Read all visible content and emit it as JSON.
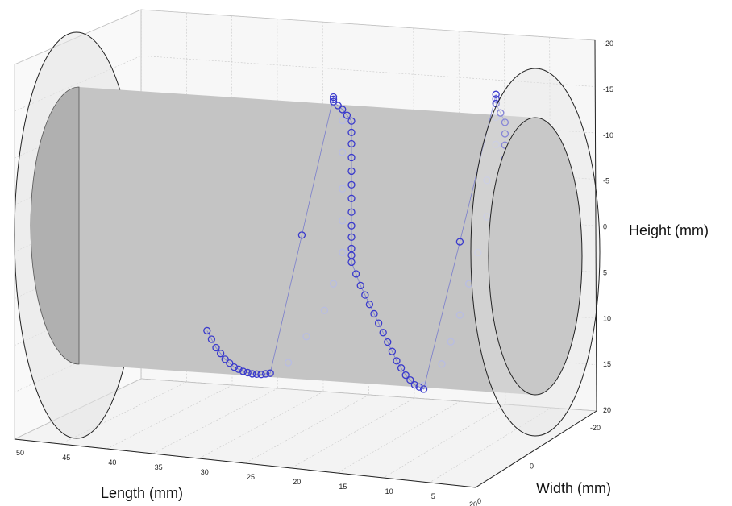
{
  "chart_data": {
    "type": "scatter",
    "title": "",
    "xlabel": "Length (mm)",
    "ylabel": "Width (mm)",
    "zlabel": "Height (mm)",
    "x_ticks": [
      "50",
      "45",
      "40",
      "35",
      "30",
      "25",
      "20",
      "15",
      "10",
      "5",
      "0"
    ],
    "y_ticks": [
      "-20",
      "0",
      "20"
    ],
    "z_ticks": [
      "-20",
      "-15",
      "-10",
      "-5",
      "0",
      "5",
      "10",
      "15",
      "20"
    ],
    "xlim": [
      0,
      50
    ],
    "ylim": [
      -20,
      20
    ],
    "zlim": [
      -20,
      20
    ],
    "grid": true,
    "series": [
      {
        "marker": "circle",
        "color": "#3a3acc",
        "hidden_color": "#b9bde0",
        "points_front": [
          [
            36,
            10.6
          ],
          [
            35,
            12.4
          ],
          [
            34,
            13.6
          ],
          [
            33,
            14.4
          ],
          [
            32,
            14.8
          ],
          [
            31,
            15.0
          ],
          [
            30,
            15.0
          ],
          [
            29,
            14.8
          ],
          [
            22,
            -16.0
          ],
          [
            22,
            -15.5
          ],
          [
            21,
            -14.7
          ],
          [
            20,
            -13.5
          ],
          [
            20,
            -11.0
          ],
          [
            20,
            -8.0
          ],
          [
            20,
            -5.0
          ],
          [
            20,
            -2.0
          ],
          [
            20,
            0.5
          ],
          [
            20,
            2.0
          ],
          [
            19,
            4.5
          ],
          [
            18,
            6.5
          ],
          [
            17,
            8.5
          ],
          [
            16,
            10.5
          ],
          [
            15,
            12.5
          ],
          [
            14,
            14.0
          ],
          [
            13,
            15.0
          ],
          [
            12,
            15.4
          ],
          [
            4,
            -17.5
          ],
          [
            4,
            -16.5
          ],
          [
            3,
            -14.5
          ],
          [
            3,
            -12.0
          ],
          [
            3,
            -9.0
          ],
          [
            3,
            -6.0
          ],
          [
            3,
            -3.0
          ],
          [
            3,
            0.0
          ],
          [
            2,
            3.0
          ],
          [
            2,
            6.0
          ],
          [
            1,
            9.0
          ],
          [
            1,
            11.0
          ],
          [
            1,
            12.5
          ]
        ],
        "points_back": [
          [
            27,
            13.5
          ],
          [
            25,
            10.5
          ],
          [
            23,
            7.5
          ],
          [
            22,
            4.5
          ],
          [
            21,
            1.0
          ],
          [
            21,
            -2.5
          ],
          [
            21,
            -6.0
          ],
          [
            21,
            -10.0
          ],
          [
            21,
            -13.5
          ],
          [
            12,
            15.0
          ],
          [
            10,
            12.5
          ],
          [
            9,
            10.0
          ],
          [
            8,
            7.0
          ],
          [
            7,
            3.5
          ],
          [
            6,
            0.0
          ],
          [
            5,
            -4.0
          ],
          [
            5,
            -8.0
          ],
          [
            4,
            -12.0
          ],
          [
            4,
            -15.0
          ]
        ]
      }
    ],
    "cylinder": {
      "radius": 12,
      "length": 46
    },
    "end_disks": {
      "radius": 20
    }
  }
}
